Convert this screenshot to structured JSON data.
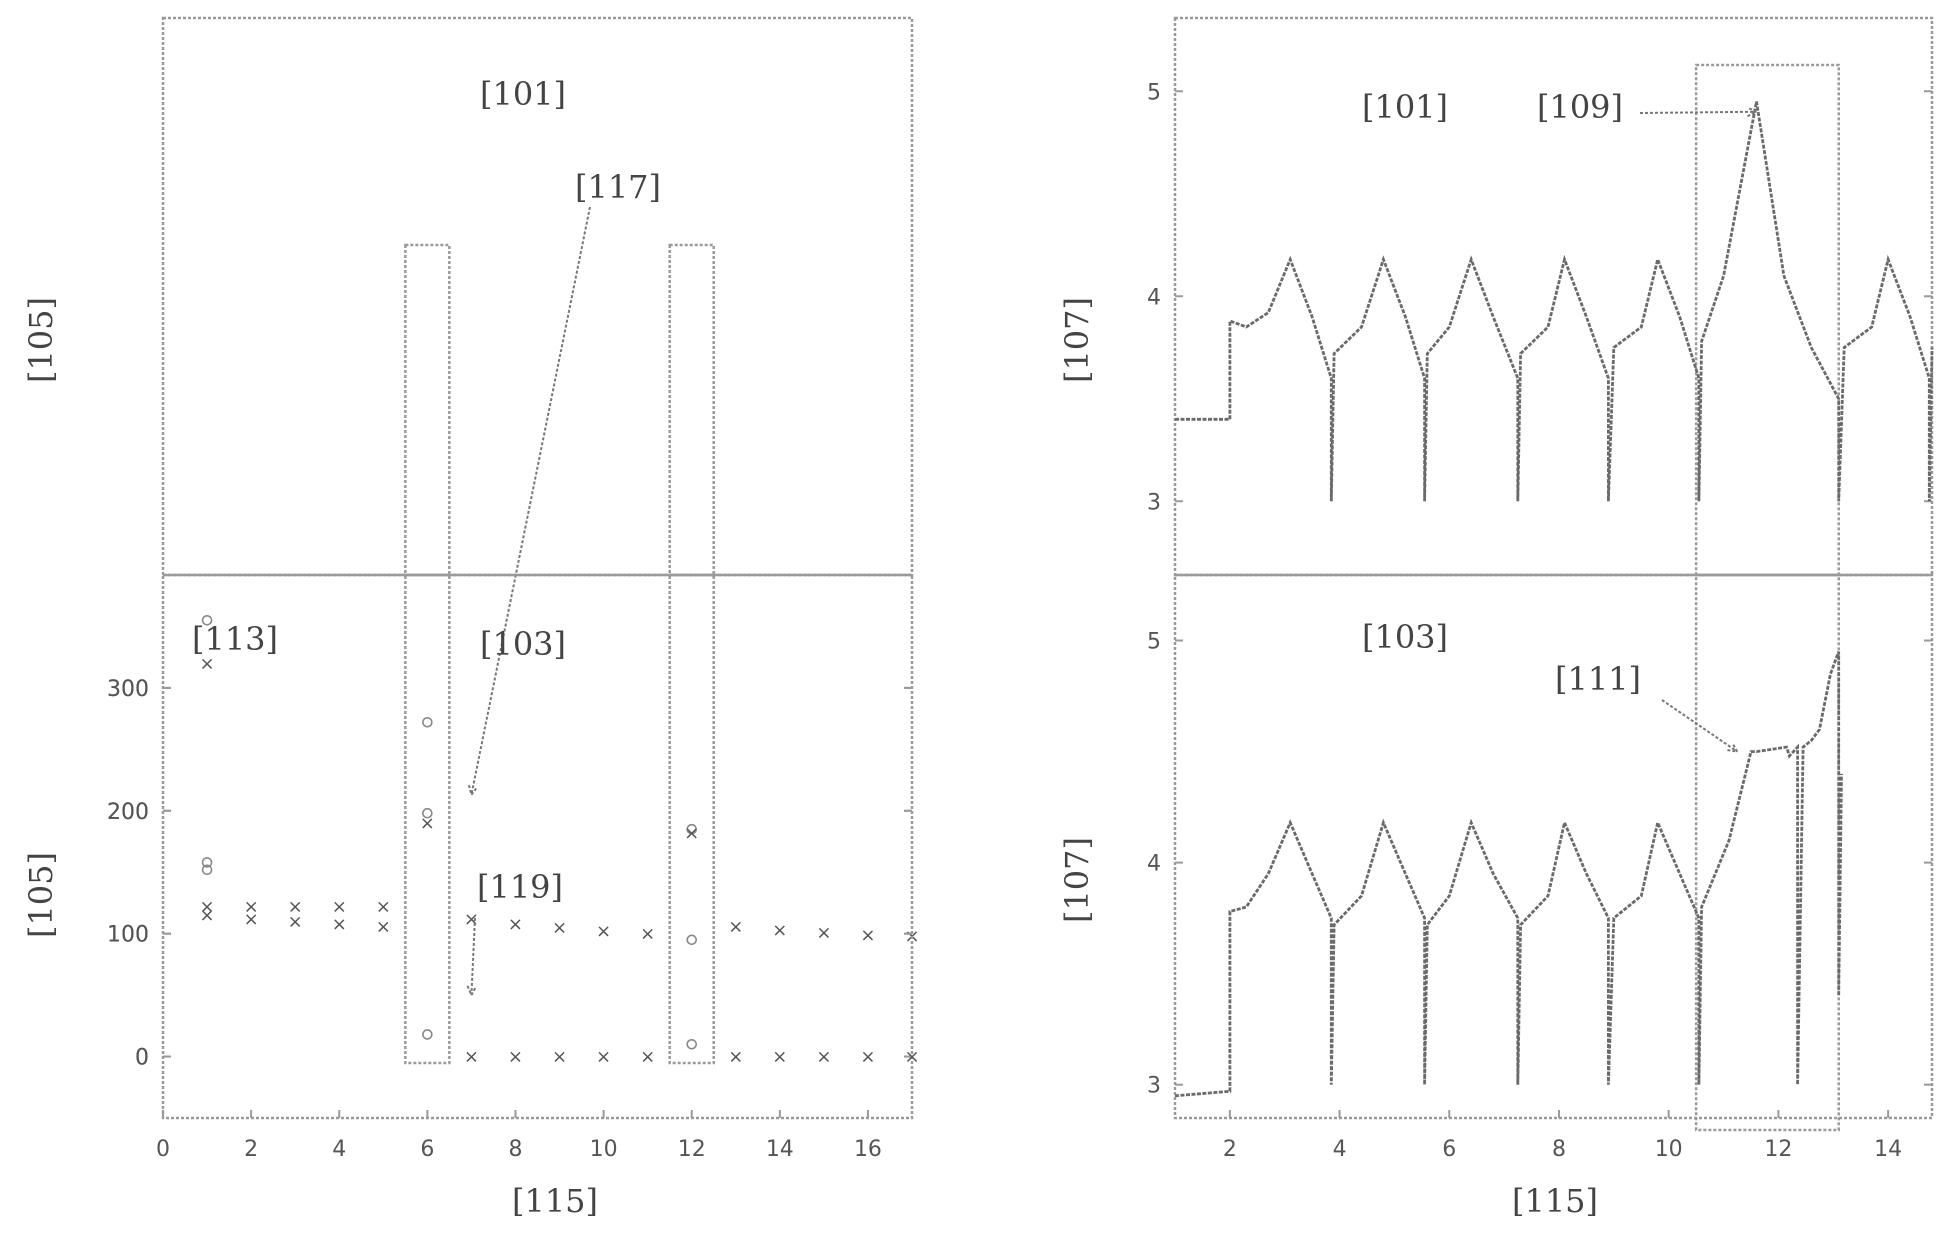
{
  "chart_data": [
    {
      "type": "scatter",
      "panel": "left-top",
      "panel_label": "[101]",
      "xlabel": "",
      "ylabel": "[105]",
      "xlim": [
        0,
        17
      ],
      "ylim": [
        -50,
        400
      ],
      "yticks": [
        0,
        100,
        200,
        300
      ],
      "yticklabels": [
        "0",
        "100",
        "200",
        "300"
      ],
      "grid": false,
      "series": [
        {
          "marker": "o",
          "x": [
            1,
            6,
            12
          ],
          "y": [
            152,
            198,
            185
          ]
        },
        {
          "marker": "x",
          "x": [
            1,
            2,
            3,
            4,
            5,
            6,
            7,
            8,
            9,
            10,
            11,
            12,
            13,
            14,
            15,
            16,
            17
          ],
          "y": [
            115,
            112,
            110,
            108,
            106,
            190,
            112,
            108,
            105,
            102,
            100,
            182,
            106,
            103,
            101,
            99,
            98
          ]
        }
      ],
      "highlight_x": [
        6,
        12
      ],
      "annotations": [
        {
          "text": "[117]",
          "x": 7,
          "y": 213
        }
      ]
    },
    {
      "type": "scatter",
      "panel": "left-bottom",
      "panel_label": "[103]",
      "xlabel": "[115]",
      "ylabel": "[105]",
      "xlim": [
        0,
        17
      ],
      "ylim": [
        -50,
        400
      ],
      "xticks": [
        0,
        2,
        4,
        6,
        8,
        10,
        12,
        14,
        16
      ],
      "xticklabels": [
        "0",
        "2",
        "4",
        "6",
        "8",
        "10",
        "12",
        "14",
        "16"
      ],
      "yticks": [
        0,
        100,
        200,
        300
      ],
      "yticklabels": [
        "0",
        "100",
        "200",
        "300"
      ],
      "grid": false,
      "series": [
        {
          "marker": "o",
          "x": [
            1,
            1,
            6,
            6,
            12,
            12
          ],
          "y": [
            355,
            158,
            272,
            18,
            95,
            10
          ]
        },
        {
          "marker": "x",
          "x": [
            1,
            1,
            2,
            3,
            4,
            5,
            7,
            8,
            9,
            10,
            11,
            13,
            14,
            15,
            16,
            17
          ],
          "y": [
            320,
            122,
            122,
            122,
            122,
            122,
            0,
            0,
            0,
            0,
            0,
            0,
            0,
            0,
            0,
            0
          ]
        }
      ],
      "highlight_x": [
        6,
        12
      ],
      "annotations": [
        {
          "text": "[113]",
          "x": 1,
          "y": 320
        },
        {
          "text": "[119]",
          "x": 7,
          "y": 50
        }
      ]
    },
    {
      "type": "line",
      "panel": "right-top",
      "panel_label": "[101]",
      "xlabel": "",
      "ylabel": "[107]",
      "xlim": [
        1,
        14.8
      ],
      "ylim": [
        2.85,
        5.25
      ],
      "yticks": [
        3,
        4,
        5
      ],
      "yticklabels": [
        "3",
        "4",
        "5"
      ],
      "grid": false,
      "x": [
        1,
        2,
        2,
        2.3,
        2.7,
        3.1,
        3.5,
        3.85,
        3.85,
        3.9,
        4.4,
        4.8,
        5.2,
        5.55,
        5.55,
        5.6,
        6,
        6.4,
        6.8,
        7.25,
        7.25,
        7.3,
        7.8,
        8.1,
        8.5,
        8.9,
        8.9,
        9,
        9.5,
        9.8,
        10.2,
        10.55,
        10.55,
        10.6,
        11,
        11.6,
        12.1,
        12.6,
        13.1,
        13.1,
        13.2,
        13.7,
        14,
        14.4,
        14.75,
        14.75,
        14.8
      ],
      "series": [
        {
          "values": [
            3.4,
            3.4,
            3.88,
            3.85,
            3.92,
            4.18,
            3.9,
            3.6,
            3.0,
            3.72,
            3.85,
            4.18,
            3.9,
            3.6,
            3.0,
            3.72,
            3.85,
            4.18,
            3.9,
            3.6,
            3.0,
            3.72,
            3.85,
            4.18,
            3.9,
            3.6,
            3.0,
            3.75,
            3.85,
            4.18,
            3.9,
            3.6,
            3.0,
            3.78,
            4.1,
            4.95,
            4.1,
            3.75,
            3.5,
            3.0,
            3.75,
            3.85,
            4.18,
            3.9,
            3.6,
            3.0,
            3.75
          ]
        }
      ],
      "highlight_xrange": [
        10.5,
        13.1
      ],
      "annotations": [
        {
          "text": "[109]",
          "x": 11.6,
          "y": 4.9
        }
      ]
    },
    {
      "type": "line",
      "panel": "right-bottom",
      "panel_label": "[103]",
      "xlabel": "[115]",
      "ylabel": "[107]",
      "xlim": [
        1,
        14.8
      ],
      "ylim": [
        2.85,
        5.25
      ],
      "xticks": [
        2,
        4,
        6,
        8,
        10,
        12,
        14
      ],
      "xticklabels": [
        "2",
        "4",
        "6",
        "8",
        "10",
        "12",
        "14"
      ],
      "yticks": [
        3,
        4,
        5
      ],
      "yticklabels": [
        "3",
        "4",
        "5"
      ],
      "grid": false,
      "x": [
        1,
        2,
        2,
        2.3,
        2.7,
        3.1,
        3.5,
        3.85,
        3.85,
        3.9,
        4.4,
        4.8,
        5.2,
        5.55,
        5.55,
        5.6,
        6,
        6.4,
        6.8,
        7.25,
        7.25,
        7.3,
        7.8,
        8.1,
        8.5,
        8.9,
        8.9,
        9,
        9.5,
        9.8,
        10.2,
        10.55,
        10.55,
        10.6,
        11.1,
        11.5,
        11.6,
        12.15,
        12.2,
        12.35,
        12.35,
        12.45,
        12.6,
        12.75,
        12.95,
        13.1,
        13.1,
        13.15
      ],
      "series": [
        {
          "values": [
            2.95,
            2.97,
            3.78,
            3.8,
            3.95,
            4.18,
            3.95,
            3.75,
            3.0,
            3.72,
            3.85,
            4.18,
            3.95,
            3.75,
            3.0,
            3.72,
            3.85,
            4.18,
            3.95,
            3.75,
            3.0,
            3.72,
            3.85,
            4.18,
            3.95,
            3.75,
            3.0,
            3.75,
            3.85,
            4.18,
            3.95,
            3.75,
            3.0,
            3.8,
            4.1,
            4.5,
            4.5,
            4.52,
            4.48,
            4.52,
            3.0,
            4.52,
            4.55,
            4.6,
            4.85,
            4.95,
            3.4,
            4.4
          ]
        }
      ],
      "highlight_xrange": [
        10.5,
        13.1
      ],
      "annotations": [
        {
          "text": "[111]",
          "x": 11.25,
          "y": 4.5
        }
      ]
    }
  ]
}
